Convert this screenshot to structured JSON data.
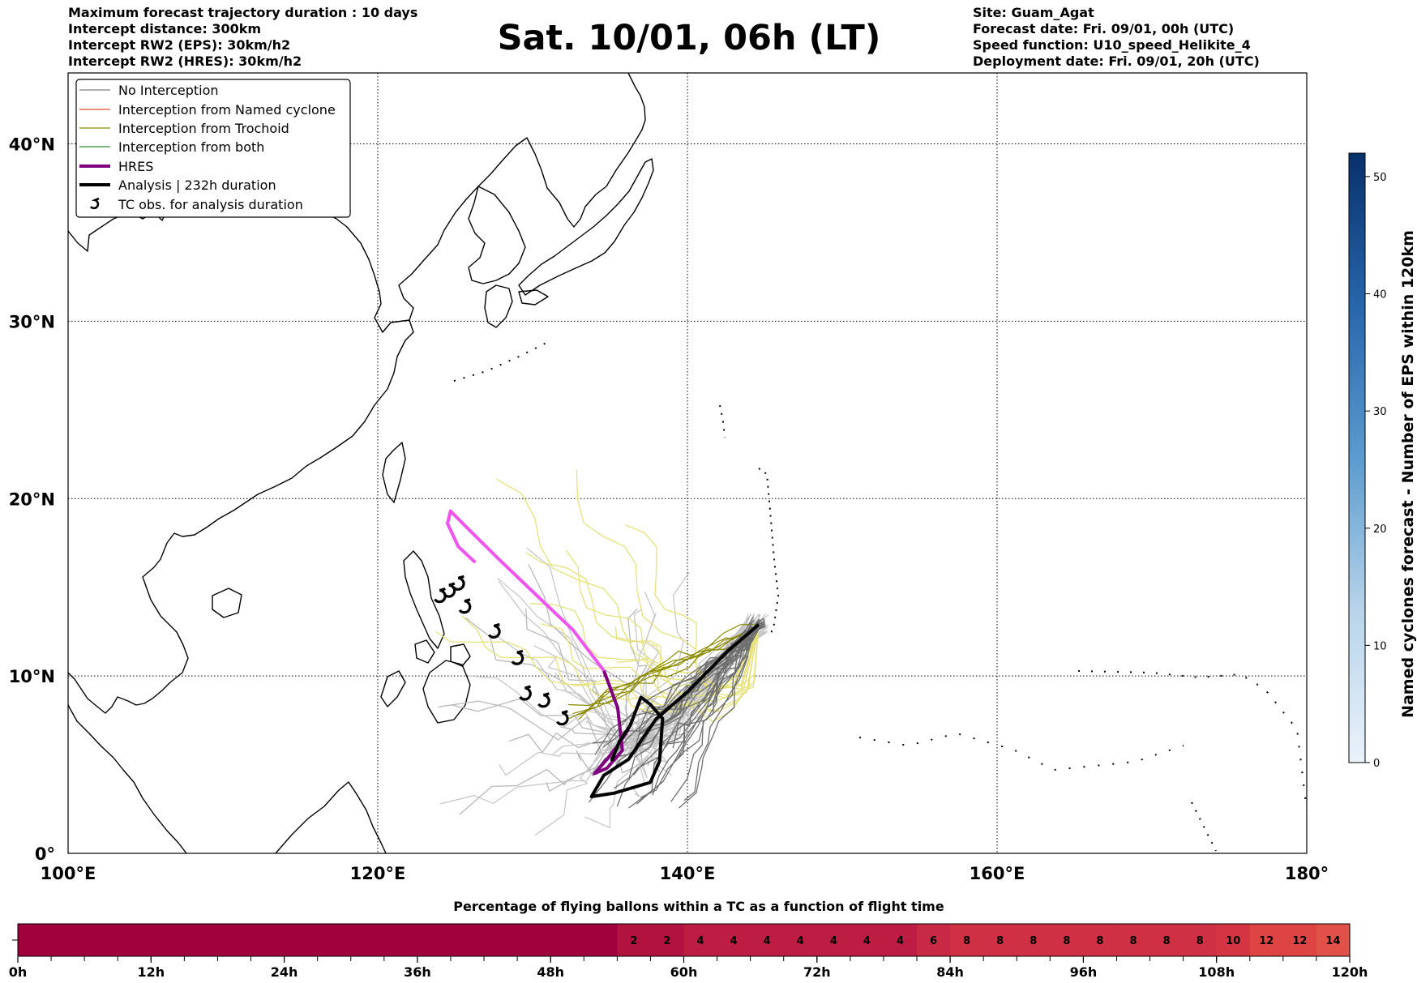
{
  "header": {
    "left_lines": [
      "Maximum forecast trajectory duration : 10 days",
      "Intercept distance: 300km",
      "Intercept RW2 (EPS):  30km/h2",
      "Intercept RW2 (HRES): 30km/h2"
    ],
    "title": "Sat. 10/01, 06h (LT)",
    "right_lines": [
      "Site: Guam_Agat",
      "Forecast date: Fri. 09/01, 00h (UTC)",
      "Speed function: U10_speed_Helikite_4",
      "Deployment date: Fri. 09/01, 20h (UTC)"
    ]
  },
  "legend": {
    "entries": [
      {
        "label": "No Interception",
        "color": "#808080"
      },
      {
        "label": "Interception from Named cyclone",
        "color": "#e8502a"
      },
      {
        "label": "Interception from Trochoid",
        "color": "#8a8a00"
      },
      {
        "label": "Interception from both",
        "color": "#2e8b2e"
      },
      {
        "label": "HRES",
        "color": "#800080"
      },
      {
        "label": "Analysis | 232h duration",
        "color": "#000000"
      },
      {
        "label": "TC obs. for analysis duration",
        "color": "#000000",
        "icon": "cyclone-symbol-icon"
      }
    ]
  },
  "chart_data": [
    {
      "type": "map-trajectories",
      "x_ticks": [
        "100°E",
        "120°E",
        "140°E",
        "160°E",
        "180°"
      ],
      "y_ticks": [
        "0°",
        "10°N",
        "20°N",
        "30°N",
        "40°N"
      ],
      "xlim": [
        100,
        180
      ],
      "ylim": [
        0,
        44
      ],
      "grid": true,
      "legend_position": "top-left",
      "hres_track": [
        [
          136.2,
          7.0
        ],
        [
          135.6,
          6.2
        ],
        [
          134.8,
          5.3
        ],
        [
          134.0,
          4.5
        ],
        [
          134.8,
          4.8
        ],
        [
          135.8,
          5.8
        ],
        [
          135.5,
          8.2
        ],
        [
          134.6,
          10.3
        ],
        [
          132.6,
          12.6
        ],
        [
          130.2,
          14.6
        ],
        [
          127.8,
          16.6
        ],
        [
          125.6,
          18.5
        ],
        [
          124.7,
          19.3
        ],
        [
          124.5,
          18.6
        ],
        [
          125.2,
          17.3
        ],
        [
          126.3,
          16.4
        ]
      ],
      "analysis_track": [
        [
          144.6,
          12.9
        ],
        [
          142.6,
          11.4
        ],
        [
          140.0,
          9.1
        ],
        [
          138.0,
          7.6
        ],
        [
          137.2,
          6.6
        ],
        [
          136.2,
          5.3
        ],
        [
          134.6,
          4.4
        ],
        [
          133.8,
          3.2
        ],
        [
          135.3,
          3.4
        ],
        [
          137.6,
          4.0
        ],
        [
          138.2,
          5.2
        ],
        [
          138.4,
          7.6
        ],
        [
          137.6,
          8.4
        ],
        [
          137.0,
          8.8
        ],
        [
          136.3,
          7.2
        ],
        [
          135.6,
          6.3
        ],
        [
          135.1,
          5.2
        ]
      ],
      "tc_observations": [
        [
          131.9,
          7.6
        ],
        [
          130.7,
          8.6
        ],
        [
          129.5,
          9.0
        ],
        [
          129.0,
          11.0
        ],
        [
          127.5,
          12.5
        ],
        [
          125.6,
          13.9
        ],
        [
          125.2,
          15.2
        ],
        [
          124.6,
          14.8
        ],
        [
          124.0,
          14.5
        ]
      ]
    },
    {
      "type": "colorbar",
      "label": "Named cyclones forecast - Number of EPS within 120km",
      "range": [
        0,
        52
      ],
      "ticks": [
        "0",
        "10",
        "20",
        "30",
        "40",
        "50"
      ],
      "colors": [
        "#eaf2fb",
        "#08306b"
      ]
    },
    {
      "type": "bar",
      "title": "Percentage of flying ballons within a TC as a function of flight time",
      "x_ticks": [
        "0h",
        "12h",
        "24h",
        "36h",
        "48h",
        "60h",
        "72h",
        "84h",
        "96h",
        "108h",
        "120h"
      ],
      "x_range_hours": [
        0,
        120
      ],
      "segment_hours": 3,
      "values": [
        0,
        0,
        0,
        0,
        0,
        0,
        0,
        0,
        0,
        0,
        0,
        0,
        0,
        0,
        0,
        0,
        0,
        0,
        2,
        2,
        4,
        4,
        4,
        4,
        4,
        4,
        4,
        6,
        8,
        8,
        8,
        8,
        8,
        8,
        8,
        8,
        10,
        12,
        12,
        14
      ],
      "colors": {
        "0": "#a0003c",
        "2": "#b2123f",
        "4": "#bd1d42",
        "6": "#c82944",
        "8": "#cf3043",
        "10": "#d53442",
        "12": "#df4445",
        "14": "#e2504a"
      }
    }
  ]
}
